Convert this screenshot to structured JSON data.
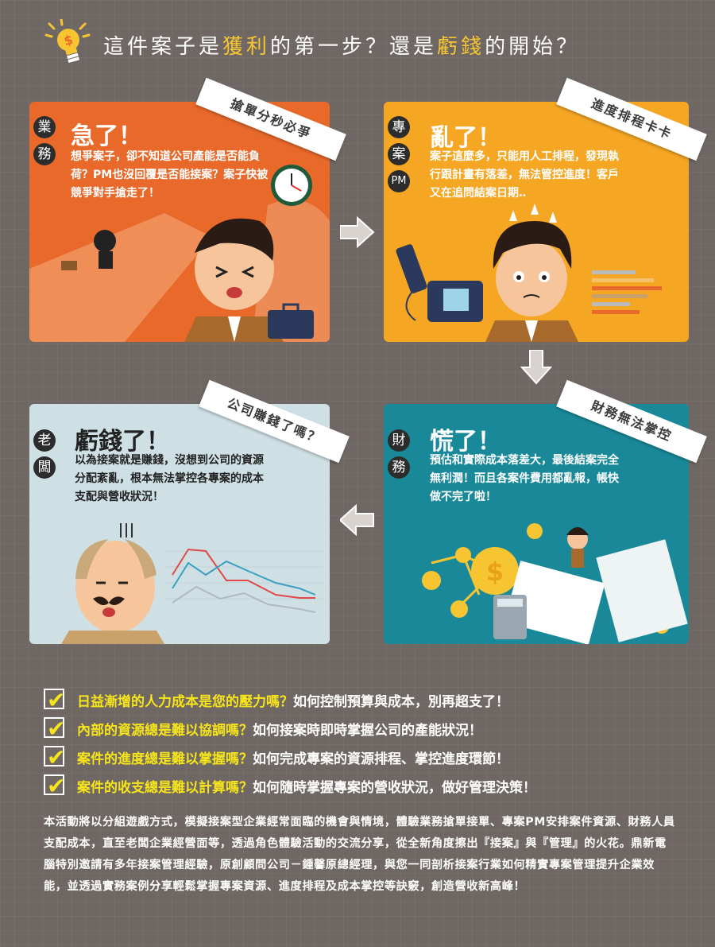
{
  "header": {
    "part1": "這件案子是",
    "highlight1": "獲利",
    "part2": "的第一步？還是",
    "highlight2": "虧錢",
    "part3": "的開始？"
  },
  "panels": {
    "sales": {
      "role": [
        "業",
        "務"
      ],
      "ribbon": "搶單分秒必爭",
      "title": "急了！",
      "desc": "想爭案子，卻不知道公司產能是否能負荷？PM也沒回覆是否能接案？案子快被競爭對手搶走了！"
    },
    "pm": {
      "role": [
        "專",
        "案",
        "PM"
      ],
      "ribbon": "進度排程卡卡",
      "title": "亂了！",
      "desc": "案子這麼多，只能用人工排程，發現執行跟計畫有落差，無法管控進度！客戶又在追問結案日期‥"
    },
    "finance": {
      "role": [
        "財",
        "務"
      ],
      "ribbon": "財務無法掌控",
      "title": "慌了！",
      "desc": "預估和實際成本落差大，最後結案完全無利潤！而且各案件費用都亂報，帳快做不完了啦！"
    },
    "boss": {
      "role": [
        "老",
        "闆"
      ],
      "ribbon": "公司賺錢了嗎？",
      "title": "虧錢了！",
      "desc": "以為接案就是賺錢，沒想到公司的資源分配紊亂，根本無法掌控各專案的成本支配與營收狀況！"
    }
  },
  "checklist": [
    {
      "q": "日益漸增的人力成本是您的壓力嗎？",
      "a": "如何控制預算與成本，別再超支了！"
    },
    {
      "q": "內部的資源總是難以協調嗎？",
      "a": "如何接案時即時掌握公司的產能狀況！"
    },
    {
      "q": "案件的進度總是難以掌握嗎？",
      "a": "如何完成專案的資源排程、掌控進度環節！"
    },
    {
      "q": "案件的收支總是難以計算嗎？",
      "a": "如何隨時掌握專案的營收狀況，做好管理決策！"
    }
  ],
  "body": "本活動將以分組遊戲方式，模擬接案型企業經常面臨的機會與情境，體驗業務搶單接單、專案PM安排案件資源、財務人員支配成本，直至老闆企業經營面等，透過角色體驗活動的交流分享，從全新角度擦出『接案』與『管理』的火花。鼎新電腦特別邀請有多年接案管理經驗，原創顧問公司－鍾馨原總經理，與您一同剖析接案行業如何精實專案管理提升企業效能，並透過實務案例分享輕鬆掌握專案資源、進度排程及成本掌控等訣竅，創造營收新高峰！",
  "colors": {
    "background": "#6f6763",
    "sales": "#e8692a",
    "pm": "#f5a623",
    "finance": "#19899a",
    "boss": "#cfe0e5",
    "highlight": "#f6c531",
    "check": "#f6e51a"
  },
  "icons": [
    "lightbulb-icon",
    "clock-icon",
    "briefcase-icon",
    "telephone-icon",
    "coin-icon",
    "calculator-icon",
    "check-icon",
    "arrow-right-icon",
    "arrow-down-icon",
    "arrow-left-icon"
  ]
}
